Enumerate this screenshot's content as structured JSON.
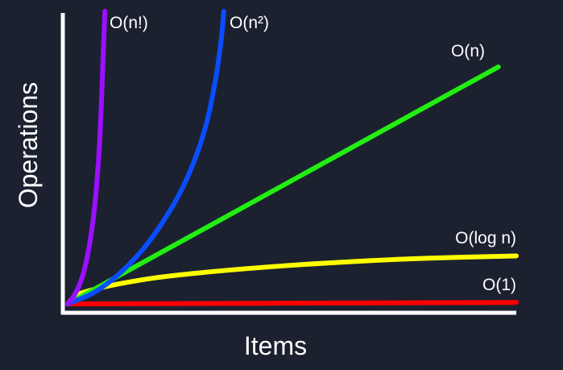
{
  "chart_data": {
    "type": "line",
    "title": "",
    "xlabel": "Items",
    "ylabel": "Operations",
    "xlim": [
      0,
      100
    ],
    "ylim": [
      0,
      100
    ],
    "grid": false,
    "legend": "none",
    "background_color": "#1c2130",
    "axis_color": "#ffffff",
    "series": [
      {
        "name": "O(n!)",
        "color": "#9b10ff",
        "x": [
          0,
          1.5,
          3.0,
          4.5,
          6.0,
          7.0,
          7.5,
          7.9,
          8.3
        ],
        "y": [
          0,
          3,
          8,
          17,
          33,
          52,
          68,
          84,
          100
        ]
      },
      {
        "name": "O(n²)",
        "color": "#0a4dff",
        "x": [
          0,
          6,
          12,
          18,
          24,
          28,
          31,
          33,
          34.2,
          34.8
        ],
        "y": [
          0,
          4,
          11,
          21,
          35,
          48,
          62,
          77,
          90,
          100
        ]
      },
      {
        "name": "O(n)",
        "color": "#22ee11",
        "x": [
          0,
          96
        ],
        "y": [
          0,
          81
        ]
      },
      {
        "name": "O(log n)",
        "color": "#ffff00",
        "x": [
          0,
          2,
          6,
          12,
          20,
          32,
          48,
          64,
          80,
          100
        ],
        "y": [
          0,
          3,
          5,
          7,
          9,
          11,
          13,
          14.5,
          15.6,
          16.4
        ]
      },
      {
        "name": "O(1)",
        "color": "#ff0000",
        "x": [
          0,
          100
        ],
        "y": [
          0,
          0.5
        ]
      }
    ]
  }
}
